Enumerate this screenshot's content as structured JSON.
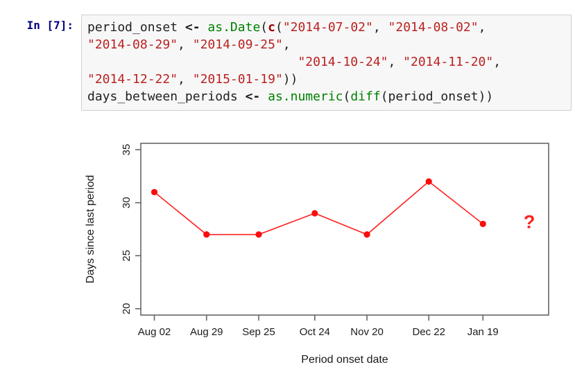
{
  "notebook": {
    "prompt": "In [7]:",
    "code_lines": [
      [
        {
          "k": "n",
          "t": "period_onset"
        },
        {
          "k": "p",
          "t": " "
        },
        {
          "k": "o",
          "t": "<-"
        },
        {
          "k": "p",
          "t": " "
        },
        {
          "k": "f",
          "t": "as.Date"
        },
        {
          "k": "p",
          "t": "("
        },
        {
          "k": "b",
          "t": "c"
        },
        {
          "k": "p",
          "t": "("
        },
        {
          "k": "s",
          "t": "\"2014-07-02\""
        },
        {
          "k": "p",
          "t": ", "
        },
        {
          "k": "s",
          "t": "\"2014-08-02\""
        },
        {
          "k": "p",
          "t": ","
        }
      ],
      [
        {
          "k": "s",
          "t": "\"2014-08-29\""
        },
        {
          "k": "p",
          "t": ", "
        },
        {
          "k": "s",
          "t": "\"2014-09-25\""
        },
        {
          "k": "p",
          "t": ","
        }
      ],
      [
        {
          "k": "p",
          "t": "                            "
        },
        {
          "k": "s",
          "t": "\"2014-10-24\""
        },
        {
          "k": "p",
          "t": ", "
        },
        {
          "k": "s",
          "t": "\"2014-11-20\""
        },
        {
          "k": "p",
          "t": ","
        }
      ],
      [
        {
          "k": "s",
          "t": "\"2014-12-22\""
        },
        {
          "k": "p",
          "t": ", "
        },
        {
          "k": "s",
          "t": "\"2015-01-19\""
        },
        {
          "k": "p",
          "t": "))"
        }
      ],
      [
        {
          "k": "n",
          "t": "days_between_periods"
        },
        {
          "k": "p",
          "t": " "
        },
        {
          "k": "o",
          "t": "<-"
        },
        {
          "k": "p",
          "t": " "
        },
        {
          "k": "f",
          "t": "as.numeric"
        },
        {
          "k": "p",
          "t": "("
        },
        {
          "k": "f",
          "t": "diff"
        },
        {
          "k": "p",
          "t": "("
        },
        {
          "k": "n",
          "t": "period_onset"
        },
        {
          "k": "p",
          "t": "))"
        }
      ]
    ]
  },
  "chart_data": {
    "type": "line",
    "title": "",
    "xlabel": "Period onset date",
    "ylabel": "Days since last period",
    "x_tick_labels": [
      "Aug 02",
      "Aug 29",
      "Sep 25",
      "Oct 24",
      "Nov 20",
      "Dec 22",
      "Jan 19"
    ],
    "x_days": [
      0,
      27,
      54,
      83,
      110,
      142,
      170
    ],
    "values": [
      31,
      27,
      27,
      29,
      27,
      32,
      28
    ],
    "y_ticks": [
      20,
      25,
      30,
      35
    ],
    "xlim": [
      -7,
      204
    ],
    "ylim": [
      19.4,
      35.6
    ],
    "annotation": {
      "text": "?",
      "x_day": 194,
      "value": 28.2
    },
    "colors": {
      "series": "#ff2020",
      "point": "#fb0d0d",
      "axis": "#666666",
      "text": "#1a1a1a"
    },
    "grid": false,
    "legend": false
  }
}
